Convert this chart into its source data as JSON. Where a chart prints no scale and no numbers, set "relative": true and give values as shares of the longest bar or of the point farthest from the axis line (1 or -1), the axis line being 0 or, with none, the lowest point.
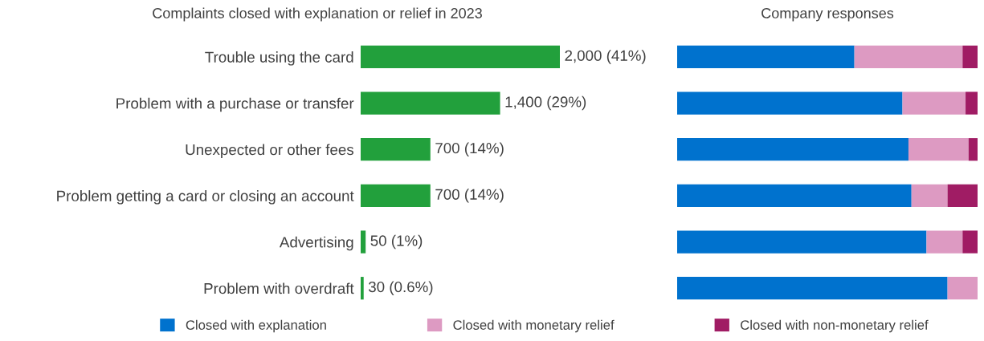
{
  "chart_data": [
    {
      "type": "bar",
      "orientation": "horizontal",
      "title": "Complaints closed with explanation or relief in 2023",
      "categories": [
        "Trouble using the card",
        "Problem with a purchase or transfer",
        "Unexpected or other fees",
        "Problem getting a card or closing an account",
        "Advertising",
        "Problem with overdraft"
      ],
      "values": [
        2000,
        1400,
        700,
        700,
        50,
        30
      ],
      "value_labels": [
        "2,000 (41%)",
        "1,400 (29%)",
        "700 (14%)",
        "700 (14%)",
        "50 (1%)",
        "30 (0.6%)"
      ],
      "color": "#22a03c",
      "tick_labels": "y",
      "legend": false
    },
    {
      "type": "bar",
      "orientation": "horizontal",
      "stacked": true,
      "relative": true,
      "title": "Company responses",
      "categories": [
        null,
        null,
        null,
        null,
        null,
        null
      ],
      "tick_labels": false,
      "legend": "bottom",
      "series": [
        {
          "name": "Closed with explanation",
          "color": "#0072ce",
          "values": [
            0.59,
            0.75,
            0.77,
            0.78,
            0.83,
            0.9
          ]
        },
        {
          "name": "Closed with monetary relief",
          "color": "#dd9ac2",
          "values": [
            0.36,
            0.21,
            0.2,
            0.12,
            0.12,
            0.1
          ]
        },
        {
          "name": "Closed with non-monetary relief",
          "color": "#a01c64",
          "values": [
            0.05,
            0.04,
            0.03,
            0.1,
            0.05,
            0
          ]
        }
      ]
    }
  ]
}
